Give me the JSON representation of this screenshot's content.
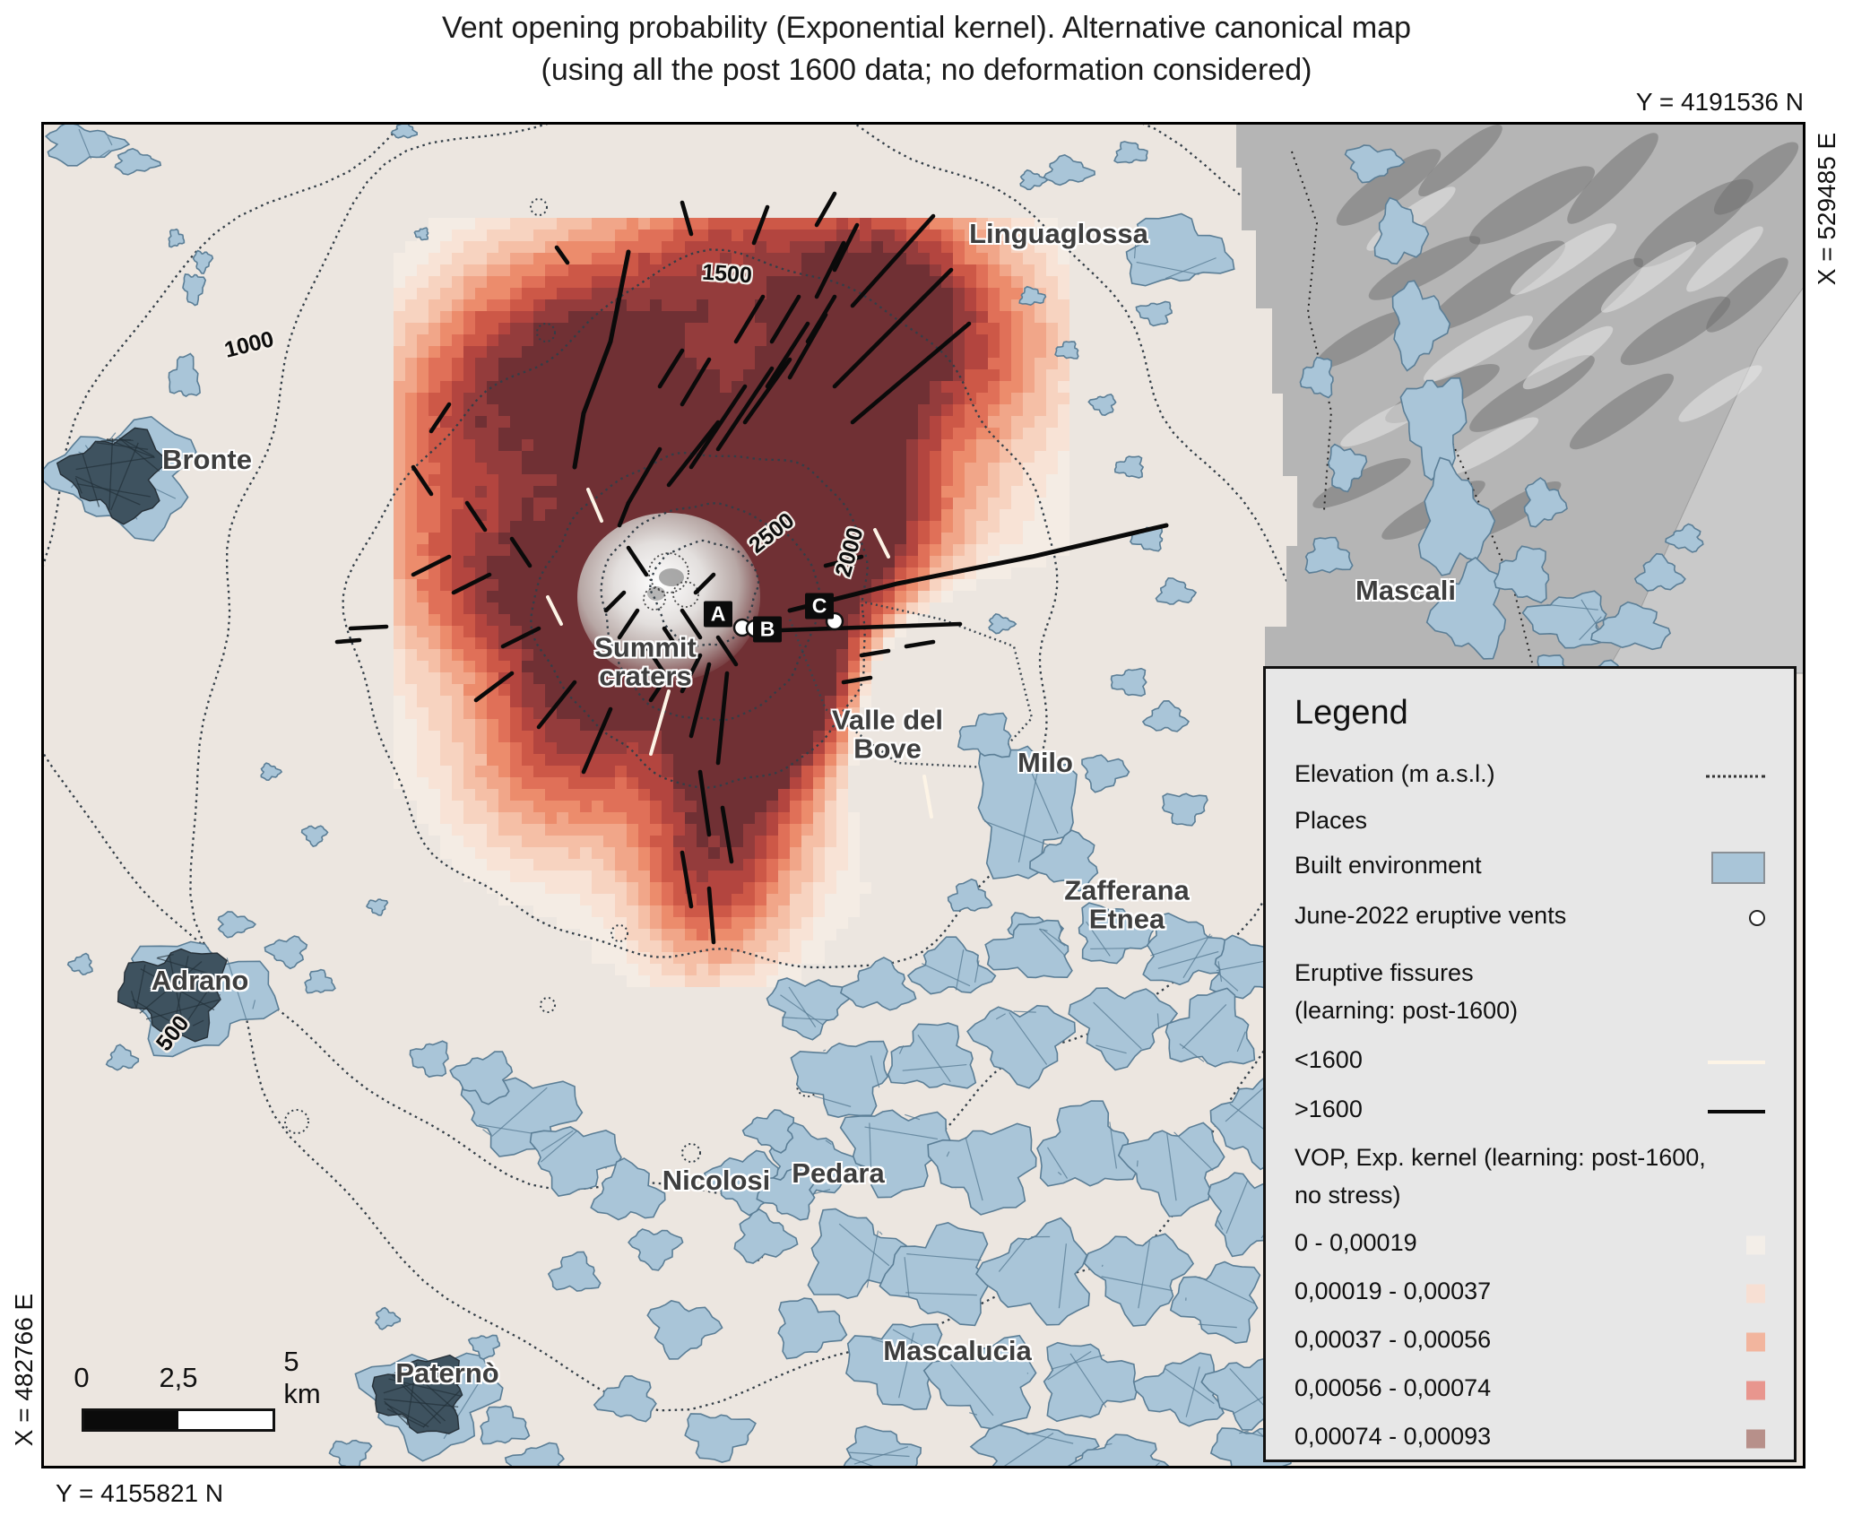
{
  "title": {
    "line1": "Vent opening probability (Exponential kernel).  Alternative canonical map",
    "line2": "(using all the post 1600 data; no deformation considered)"
  },
  "coords": {
    "top": "Y = 4191536 N",
    "right": "X = 529485 E",
    "left": "X = 482766 E",
    "bottom": "Y = 4155821 N"
  },
  "places": {
    "linguaglossa": "Linguaglossa",
    "bronte": "Bronte",
    "mascali": "Mascali",
    "summit_line1": "Summit",
    "summit_line2": "craters",
    "valle_line1": "Valle del",
    "valle_line2": "Bove",
    "milo": "Milo",
    "zafferana_line1": "Zafferana",
    "zafferana_line2": "Etnea",
    "adrano": "Adrano",
    "nicolosi": "Nicolosi",
    "pedara": "Pedara",
    "mascalucia": "Mascalucia",
    "paterno": "Paternò"
  },
  "contour_labels": {
    "c500": "500",
    "c1000": "1000",
    "c1500": "1500",
    "c2000": "2000",
    "c2500": "2500"
  },
  "markers": {
    "a": "A",
    "b": "B",
    "c": "C"
  },
  "scalebar": {
    "zero": "0",
    "mid": "2,5",
    "end": "5 km"
  },
  "legend": {
    "title": "Legend",
    "elevation": "Elevation (m a.s.l.)",
    "places_label": "Places",
    "built": "Built environment",
    "vents": "June-2022 eruptive vents",
    "fissures_line1": "Eruptive fissures",
    "fissures_line2": "(learning: post-1600)",
    "pre1600": "<1600",
    "post1600": ">1600",
    "vop_line1": "VOP, Exp. kernel (learning: post-1600,",
    "vop_line2": "no stress)",
    "classes": [
      {
        "label": "0 - 0,00019",
        "color": "#f3eee8"
      },
      {
        "label": "0,00019 - 0,00037",
        "color": "#f7dfd3"
      },
      {
        "label": "0,00037 - 0,00056",
        "color": "#f2b59e"
      },
      {
        "label": "0,00056 - 0,00074",
        "color": "#e8968e"
      },
      {
        "label": "0,00074 - 0,00093",
        "color": "#b7908a"
      }
    ]
  },
  "colors": {
    "land_base": "#ece6e0",
    "hillshade_gray": "#b5b5b5",
    "sea_gray": "#c9c9c9",
    "mountain_dark": "#6e6e6e",
    "ridge_light": "#e6e6e6",
    "built_fill": "#a9c5d8",
    "built_stroke": "#5b7e96",
    "built_dense": "#3e525f",
    "contour": "#333e47",
    "fissure_post1600": "#0a0a0a",
    "fissure_pre1600": "#fdf4e6",
    "vop_ramp": [
      "#f4ece4",
      "#f8e3d6",
      "#f7d3c0",
      "#f5bfa6",
      "#f1a689",
      "#ec8c6c",
      "#e07058",
      "#cd5847",
      "#b3453f",
      "#943c3c",
      "#703034"
    ]
  }
}
